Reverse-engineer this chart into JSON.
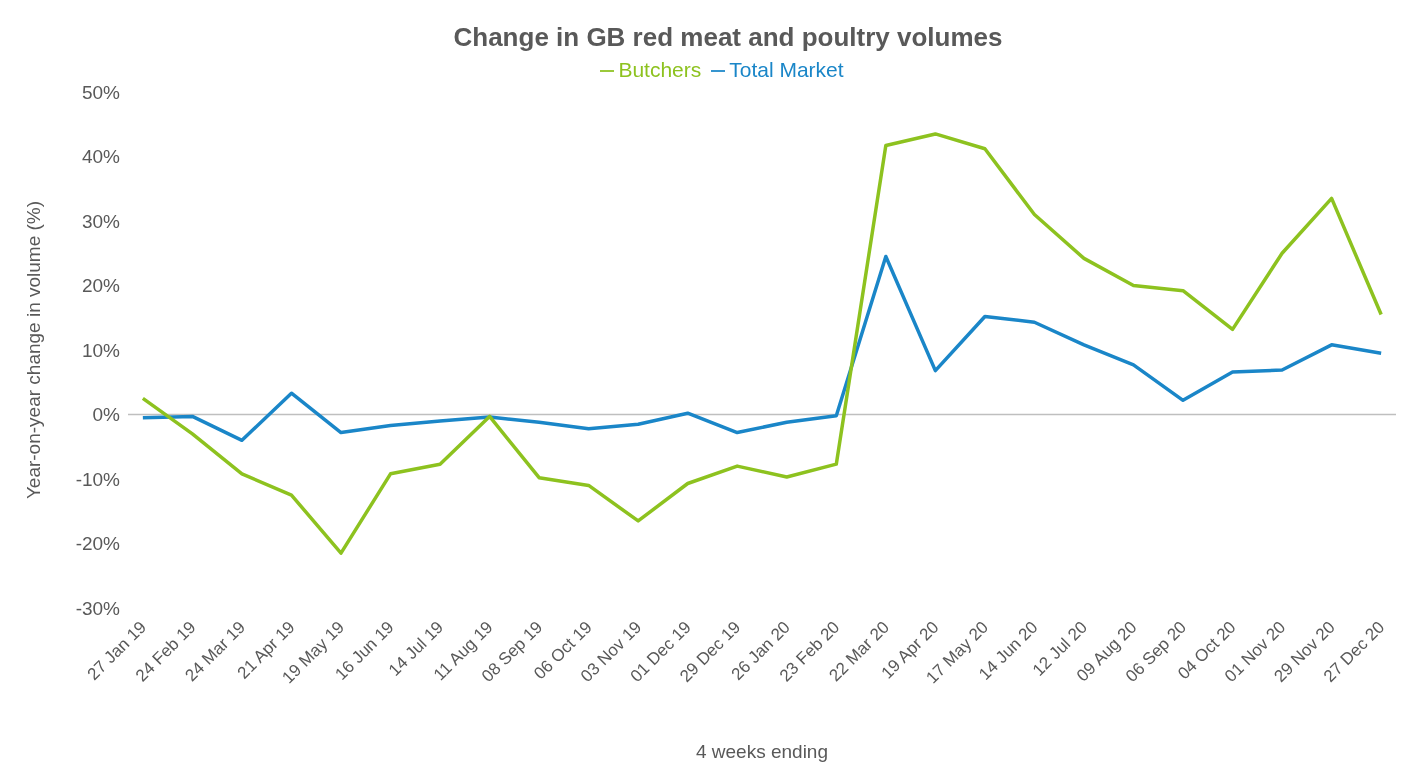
{
  "chart_data": {
    "type": "line",
    "title": "Change in GB red meat and poultry volumes",
    "xlabel": "4 weeks ending",
    "ylabel": "Year-on-year change in volume (%)",
    "categories": [
      "27 Jan 19",
      "24 Feb 19",
      "24 Mar 19",
      "21 Apr 19",
      "19 May 19",
      "16 Jun 19",
      "14 Jul 19",
      "11 Aug 19",
      "08 Sep 19",
      "06 Oct 19",
      "03 Nov 19",
      "01 Dec 19",
      "29 Dec 19",
      "26 Jan 20",
      "23 Feb 20",
      "22 Mar 20",
      "19 Apr 20",
      "17 May 20",
      "14 Jun 20",
      "12 Jul 20",
      "09 Aug 20",
      "06 Sep 20",
      "04 Oct 20",
      "01 Nov 20",
      "29 Nov 20",
      "27 Dec 20"
    ],
    "series": [
      {
        "name": "Total Market",
        "color": "#1a86c8",
        "values": [
          -0.5,
          -0.3,
          -4,
          3.3,
          -2.8,
          -1.7,
          -1,
          -0.4,
          -1.2,
          -2.2,
          -1.5,
          0.2,
          -2.8,
          -1.2,
          -0.2,
          24.5,
          6.8,
          15.2,
          14.3,
          10.8,
          7.7,
          2.2,
          6.6,
          6.9,
          10.8,
          9.5
        ]
      },
      {
        "name": "Butchers",
        "color": "#8dc21f",
        "values": [
          2.5,
          -3,
          -9.2,
          -12.5,
          -21.5,
          -9.2,
          -7.7,
          -0.3,
          -9.8,
          -11,
          -16.5,
          -10.7,
          -8,
          -9.7,
          -7.7,
          41.7,
          43.5,
          41.2,
          31,
          24.2,
          20,
          19.2,
          13.2,
          25,
          33.5,
          15.5
        ]
      }
    ],
    "ylim": [
      -30,
      50
    ],
    "yticks": [
      {
        "value": -30,
        "label": "-30%"
      },
      {
        "value": -20,
        "label": "-20%"
      },
      {
        "value": -10,
        "label": "-10%"
      },
      {
        "value": 0,
        "label": "0%"
      },
      {
        "value": 10,
        "label": "10%"
      },
      {
        "value": 20,
        "label": "20%"
      },
      {
        "value": 30,
        "label": "30%"
      },
      {
        "value": 40,
        "label": "40%"
      },
      {
        "value": 50,
        "label": "50%"
      }
    ],
    "ref_lines": [
      {
        "axis": "y",
        "value": 0,
        "color": "#bfbfbf"
      }
    ],
    "grid": false,
    "legend": "top",
    "marker": "none",
    "line_style": "solid"
  }
}
